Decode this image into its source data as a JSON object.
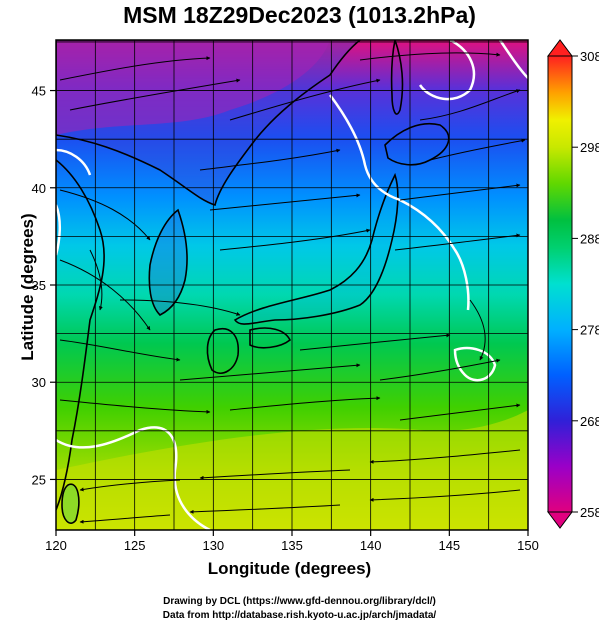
{
  "title": "MSM 18Z29Dec2023 (1013.2hPa)",
  "axes": {
    "xlabel": "Longitude (degrees)",
    "ylabel": "Latitude  (degrees)",
    "x_ticks": [
      "120",
      "125",
      "130",
      "135",
      "140",
      "145",
      "150"
    ],
    "y_ticks": [
      "25",
      "30",
      "35",
      "40",
      "45"
    ],
    "x_range": [
      120,
      150
    ],
    "y_range": [
      22.4,
      47.6
    ]
  },
  "colorbar": {
    "ticks": [
      "258",
      "268",
      "278",
      "288",
      "298",
      "308"
    ],
    "range": [
      258,
      308
    ],
    "colors": [
      "#e0007f",
      "#9a00c8",
      "#3a20d8",
      "#0050ff",
      "#00a8ff",
      "#00e0e0",
      "#00d890",
      "#00c040",
      "#40d000",
      "#a8e000",
      "#f0f000",
      "#ffc000",
      "#ff7000",
      "#ff2020"
    ]
  },
  "credits": {
    "line1": "Drawing by DCL (https://www.gfd-dennou.org/library/dcl/)",
    "line2": "Data from http://database.rish.kyoto-u.ac.jp/arch/jmadata/"
  },
  "colors": {
    "land_outline": "#000000",
    "contour_line": "#ffffff",
    "streamline": "#000000"
  }
}
